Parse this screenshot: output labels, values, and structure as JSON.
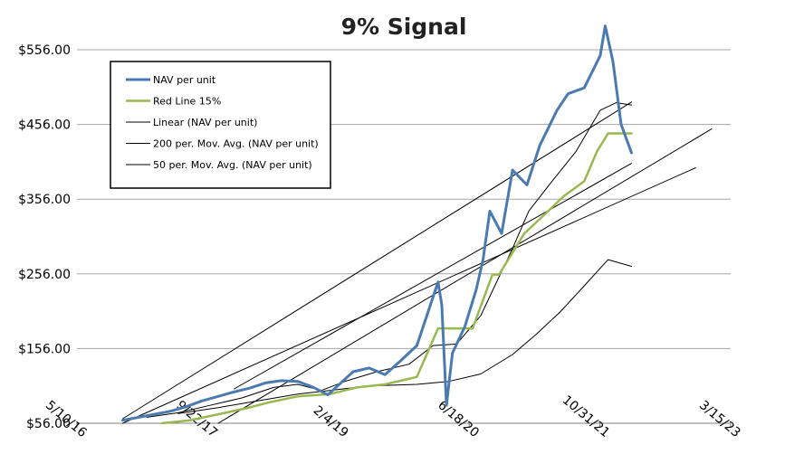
{
  "chart_data": {
    "type": "line",
    "title": "9% Signal",
    "xlabel": "",
    "ylabel": "",
    "x_tick_labels": [
      "5/10/16",
      "9/22/17",
      "2/4/19",
      "6/18/20",
      "10/31/21",
      "3/15/23"
    ],
    "y_tick_labels": [
      "$56.00",
      "$156.00",
      "$256.00",
      "$356.00",
      "$456.00",
      "$556.00"
    ],
    "y_ticks": [
      56,
      156,
      256,
      356,
      456,
      556
    ],
    "ylim": [
      56,
      556
    ],
    "xlim": [
      "2016-05-10",
      "2023-03-15"
    ],
    "grid": "horizontal",
    "legend_position": "top-left",
    "colors": {
      "nav": "#4a7ab0",
      "red_line": "#97b94f",
      "trend": "#000000",
      "grid": "#a6a6a6"
    },
    "series": [
      {
        "name": "NAV per unit",
        "x": [
          "2016-11-01",
          "2017-01-01",
          "2017-03-01",
          "2017-05-01",
          "2017-07-01",
          "2017-09-01",
          "2017-11-01",
          "2018-01-01",
          "2018-03-01",
          "2018-05-01",
          "2018-07-01",
          "2018-09-01",
          "2018-11-01",
          "2018-12-25",
          "2019-02-01",
          "2019-04-01",
          "2019-06-01",
          "2019-08-01",
          "2019-10-01",
          "2019-12-01",
          "2020-02-01",
          "2020-02-20",
          "2020-03-05",
          "2020-03-23",
          "2020-04-15",
          "2020-06-01",
          "2020-07-15",
          "2020-08-10",
          "2020-09-05",
          "2020-10-20",
          "2020-12-01",
          "2021-01-25",
          "2021-03-15",
          "2021-05-20",
          "2021-07-01",
          "2021-09-01",
          "2021-11-01",
          "2021-11-20",
          "2021-12-20",
          "2022-01-20",
          "2022-03-01"
        ],
        "values": [
          60,
          64,
          68,
          72,
          78,
          86,
          92,
          98,
          103,
          110,
          113,
          112,
          104,
          94,
          106,
          125,
          130,
          121,
          140,
          160,
          225,
          245,
          215,
          80,
          150,
          185,
          235,
          275,
          340,
          310,
          395,
          375,
          428,
          475,
          497,
          505,
          548,
          588,
          540,
          456,
          418
        ]
      },
      {
        "name": "Red Line 15%",
        "x": [
          "2017-04-01",
          "2017-07-15",
          "2017-11-01",
          "2018-02-15",
          "2018-05-15",
          "2018-09-01",
          "2019-01-01",
          "2019-04-15",
          "2019-08-01",
          "2019-12-01",
          "2020-02-20",
          "2020-07-01",
          "2020-09-15",
          "2020-10-10",
          "2021-01-15",
          "2021-04-01",
          "2021-06-15",
          "2021-09-01",
          "2021-10-20",
          "2021-12-01",
          "2022-03-01"
        ],
        "values": [
          56,
          60,
          68,
          76,
          84,
          92,
          95,
          104,
          108,
          118,
          183,
          183,
          255,
          255,
          310,
          335,
          360,
          380,
          420,
          444,
          444
        ]
      },
      {
        "name": "Linear (NAV per unit)",
        "x": [
          "2016-11-01",
          "2022-03-01"
        ],
        "values": [
          62,
          486
        ]
      },
      {
        "name": "200 per. Mov. Avg. (NAV per unit)",
        "x": [
          "2017-06-01",
          "2017-11-01",
          "2018-04-01",
          "2018-09-01",
          "2019-01-01",
          "2019-06-01",
          "2019-12-01",
          "2020-04-01",
          "2020-08-01",
          "2020-12-01",
          "2021-03-01",
          "2021-06-01",
          "2021-09-01",
          "2021-12-01",
          "2022-03-01"
        ],
        "values": [
          69,
          77,
          86,
          95,
          100,
          106,
          108,
          112,
          122,
          148,
          175,
          205,
          240,
          275,
          266
        ]
      },
      {
        "name": "50 per. Mov. Avg. (NAV per unit)",
        "x": [
          "2017-02-01",
          "2017-06-01",
          "2017-10-01",
          "2018-02-01",
          "2018-06-01",
          "2018-09-01",
          "2018-12-01",
          "2019-03-01",
          "2019-07-01",
          "2019-11-01",
          "2020-02-01",
          "2020-05-01",
          "2020-08-01",
          "2020-10-01",
          "2020-12-01",
          "2021-02-01",
          "2021-05-01",
          "2021-08-01",
          "2021-11-01",
          "2022-01-01",
          "2022-03-01"
        ],
        "values": [
          64,
          70,
          80,
          90,
          104,
          108,
          100,
          112,
          125,
          135,
          160,
          162,
          200,
          245,
          290,
          340,
          380,
          420,
          475,
          485,
          482
        ]
      }
    ],
    "extra_trendlines": [
      {
        "x": [
          "2017-11-01",
          "2023-01-01"
        ],
        "values": [
          56,
          450
        ]
      },
      {
        "x": [
          "2018-01-01",
          "2022-03-01"
        ],
        "values": [
          102,
          404
        ]
      },
      {
        "x": [
          "2016-11-01",
          "2022-11-01"
        ],
        "values": [
          56,
          398
        ]
      }
    ]
  }
}
